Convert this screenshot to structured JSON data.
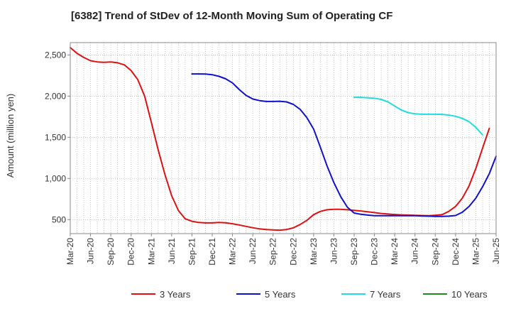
{
  "chart_data": {
    "type": "line",
    "title": "[6382]  Trend of StDev of 12-Month Moving Sum of Operating CF",
    "xlabel": "",
    "ylabel": "Amount (million yen)",
    "grid": true,
    "legend_position": "bottom",
    "x_ticks": [
      "Mar-20",
      "Jun-20",
      "Sep-20",
      "Dec-20",
      "Mar-21",
      "Jun-21",
      "Sep-21",
      "Dec-21",
      "Mar-22",
      "Jun-22",
      "Sep-22",
      "Dec-22",
      "Mar-23",
      "Jun-23",
      "Sep-23",
      "Dec-23",
      "Mar-24",
      "Jun-24",
      "Sep-24",
      "Dec-24",
      "Mar-25",
      "Jun-25"
    ],
    "ylim": [
      330,
      2650
    ],
    "y_ticks": [
      500,
      1000,
      1500,
      2000,
      2500
    ],
    "y_tick_labels": [
      "500",
      "1,000",
      "1,500",
      "2,000",
      "2,500"
    ],
    "series": [
      {
        "name": "3 Years",
        "color": "#dd1111",
        "start": "Mar-20",
        "values": [
          2590,
          2520,
          2470,
          2430,
          2415,
          2410,
          2415,
          2405,
          2380,
          2310,
          2200,
          2000,
          1680,
          1350,
          1050,
          790,
          610,
          510,
          480,
          465,
          460,
          460,
          465,
          462,
          450,
          435,
          418,
          402,
          388,
          380,
          375,
          372,
          380,
          400,
          440,
          490,
          560,
          600,
          620,
          625,
          625,
          620,
          612,
          605,
          595,
          585,
          575,
          568,
          562,
          558,
          555,
          552,
          550,
          548,
          553,
          560,
          600,
          660,
          760,
          910,
          1120,
          1370,
          1610
        ]
      },
      {
        "name": "5 Years",
        "color": "#1111cc",
        "start": "Sep-21",
        "values": [
          2270,
          2270,
          2268,
          2260,
          2240,
          2210,
          2160,
          2080,
          2010,
          1965,
          1945,
          1935,
          1935,
          1938,
          1930,
          1900,
          1840,
          1740,
          1600,
          1380,
          1150,
          950,
          780,
          650,
          580,
          565,
          555,
          548,
          548,
          548,
          548,
          548,
          548,
          547,
          545,
          542,
          540,
          540,
          542,
          550,
          590,
          660,
          760,
          900,
          1060,
          1270
        ]
      },
      {
        "name": "7 Years",
        "color": "#22dddd",
        "start": "Sep-23",
        "values": [
          1985,
          1985,
          1980,
          1975,
          1960,
          1930,
          1880,
          1830,
          1800,
          1785,
          1780,
          1780,
          1780,
          1778,
          1770,
          1755,
          1730,
          1690,
          1620,
          1530
        ]
      },
      {
        "name": "10 Years",
        "color": "#228822",
        "start": "Sep-23",
        "values": []
      }
    ]
  }
}
